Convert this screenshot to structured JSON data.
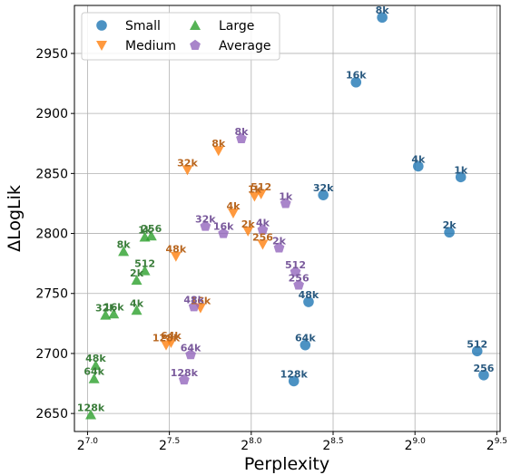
{
  "chart_data": {
    "type": "scatter",
    "title": "",
    "xlabel": "Perplexity",
    "ylabel": "ΔLogLik",
    "xscale": "log2",
    "xlim_exponent": [
      6.92,
      9.52
    ],
    "ylim": [
      2635,
      2990
    ],
    "x_ticks": [
      {
        "base": "2",
        "exp": "7.0"
      },
      {
        "base": "2",
        "exp": "7.5"
      },
      {
        "base": "2",
        "exp": "8.0"
      },
      {
        "base": "2",
        "exp": "8.5"
      },
      {
        "base": "2",
        "exp": "9.0"
      },
      {
        "base": "2",
        "exp": "9.5"
      }
    ],
    "x_tick_exponents": [
      7.0,
      7.5,
      8.0,
      8.5,
      9.0,
      9.5
    ],
    "y_ticks": [
      "2650",
      "2700",
      "2750",
      "2800",
      "2850",
      "2900",
      "2950"
    ],
    "y_tick_values": [
      2650,
      2700,
      2750,
      2800,
      2850,
      2900,
      2950
    ],
    "grid": true,
    "legend_position": "top-left",
    "series": [
      {
        "name": "Small",
        "marker": "circle",
        "color": "#1f77b4",
        "label_color": "#2a5a80",
        "points": [
          {
            "label": "8k",
            "x_exp": 8.8,
            "y": 2980
          },
          {
            "label": "16k",
            "x_exp": 8.64,
            "y": 2926
          },
          {
            "label": "4k",
            "x_exp": 9.02,
            "y": 2856
          },
          {
            "label": "1k",
            "x_exp": 9.28,
            "y": 2847
          },
          {
            "label": "32k",
            "x_exp": 8.44,
            "y": 2832
          },
          {
            "label": "2k",
            "x_exp": 9.21,
            "y": 2801
          },
          {
            "label": "48k",
            "x_exp": 8.35,
            "y": 2743
          },
          {
            "label": "64k",
            "x_exp": 8.33,
            "y": 2707
          },
          {
            "label": "512",
            "x_exp": 9.38,
            "y": 2702
          },
          {
            "label": "256",
            "x_exp": 9.42,
            "y": 2682
          },
          {
            "label": "128k",
            "x_exp": 8.26,
            "y": 2677
          }
        ]
      },
      {
        "name": "Medium",
        "marker": "triangle-down",
        "color": "#ff7f0e",
        "label_color": "#b8661f",
        "points": [
          {
            "label": "8k",
            "x_exp": 7.8,
            "y": 2869
          },
          {
            "label": "32k",
            "x_exp": 7.61,
            "y": 2853
          },
          {
            "label": "1k",
            "x_exp": 8.02,
            "y": 2831
          },
          {
            "label": "512",
            "x_exp": 8.06,
            "y": 2833
          },
          {
            "label": "4k",
            "x_exp": 7.89,
            "y": 2817
          },
          {
            "label": "2k",
            "x_exp": 7.98,
            "y": 2802
          },
          {
            "label": "256",
            "x_exp": 8.07,
            "y": 2791
          },
          {
            "label": "48k",
            "x_exp": 7.54,
            "y": 2781
          },
          {
            "label": "16k",
            "x_exp": 7.69,
            "y": 2738
          },
          {
            "label": "128k",
            "x_exp": 7.48,
            "y": 2707
          },
          {
            "label": "64k",
            "x_exp": 7.51,
            "y": 2709
          }
        ]
      },
      {
        "name": "Large",
        "marker": "triangle-up",
        "color": "#2ca02c",
        "label_color": "#3a7d3a",
        "points": [
          {
            "label": "1k",
            "x_exp": 7.35,
            "y": 2797
          },
          {
            "label": "256",
            "x_exp": 7.39,
            "y": 2798
          },
          {
            "label": "8k",
            "x_exp": 7.22,
            "y": 2785
          },
          {
            "label": "512",
            "x_exp": 7.35,
            "y": 2769
          },
          {
            "label": "2k",
            "x_exp": 7.3,
            "y": 2761
          },
          {
            "label": "4k",
            "x_exp": 7.3,
            "y": 2736
          },
          {
            "label": "32k",
            "x_exp": 7.11,
            "y": 2732
          },
          {
            "label": "16k",
            "x_exp": 7.16,
            "y": 2733
          },
          {
            "label": "48k",
            "x_exp": 7.05,
            "y": 2690
          },
          {
            "label": "64k",
            "x_exp": 7.04,
            "y": 2679
          },
          {
            "label": "128k",
            "x_exp": 7.02,
            "y": 2649
          }
        ]
      },
      {
        "name": "Average",
        "marker": "pentagon",
        "color": "#9467bd",
        "label_color": "#7a5a9c",
        "points": [
          {
            "label": "8k",
            "x_exp": 7.94,
            "y": 2879
          },
          {
            "label": "1k",
            "x_exp": 8.21,
            "y": 2825
          },
          {
            "label": "32k",
            "x_exp": 7.72,
            "y": 2806
          },
          {
            "label": "4k",
            "x_exp": 8.07,
            "y": 2803
          },
          {
            "label": "16k",
            "x_exp": 7.83,
            "y": 2800
          },
          {
            "label": "2k",
            "x_exp": 8.17,
            "y": 2788
          },
          {
            "label": "512",
            "x_exp": 8.27,
            "y": 2768
          },
          {
            "label": "256",
            "x_exp": 8.29,
            "y": 2757
          },
          {
            "label": "48k",
            "x_exp": 7.65,
            "y": 2739
          },
          {
            "label": "64k",
            "x_exp": 7.63,
            "y": 2699
          },
          {
            "label": "128k",
            "x_exp": 7.59,
            "y": 2678
          }
        ]
      }
    ]
  }
}
